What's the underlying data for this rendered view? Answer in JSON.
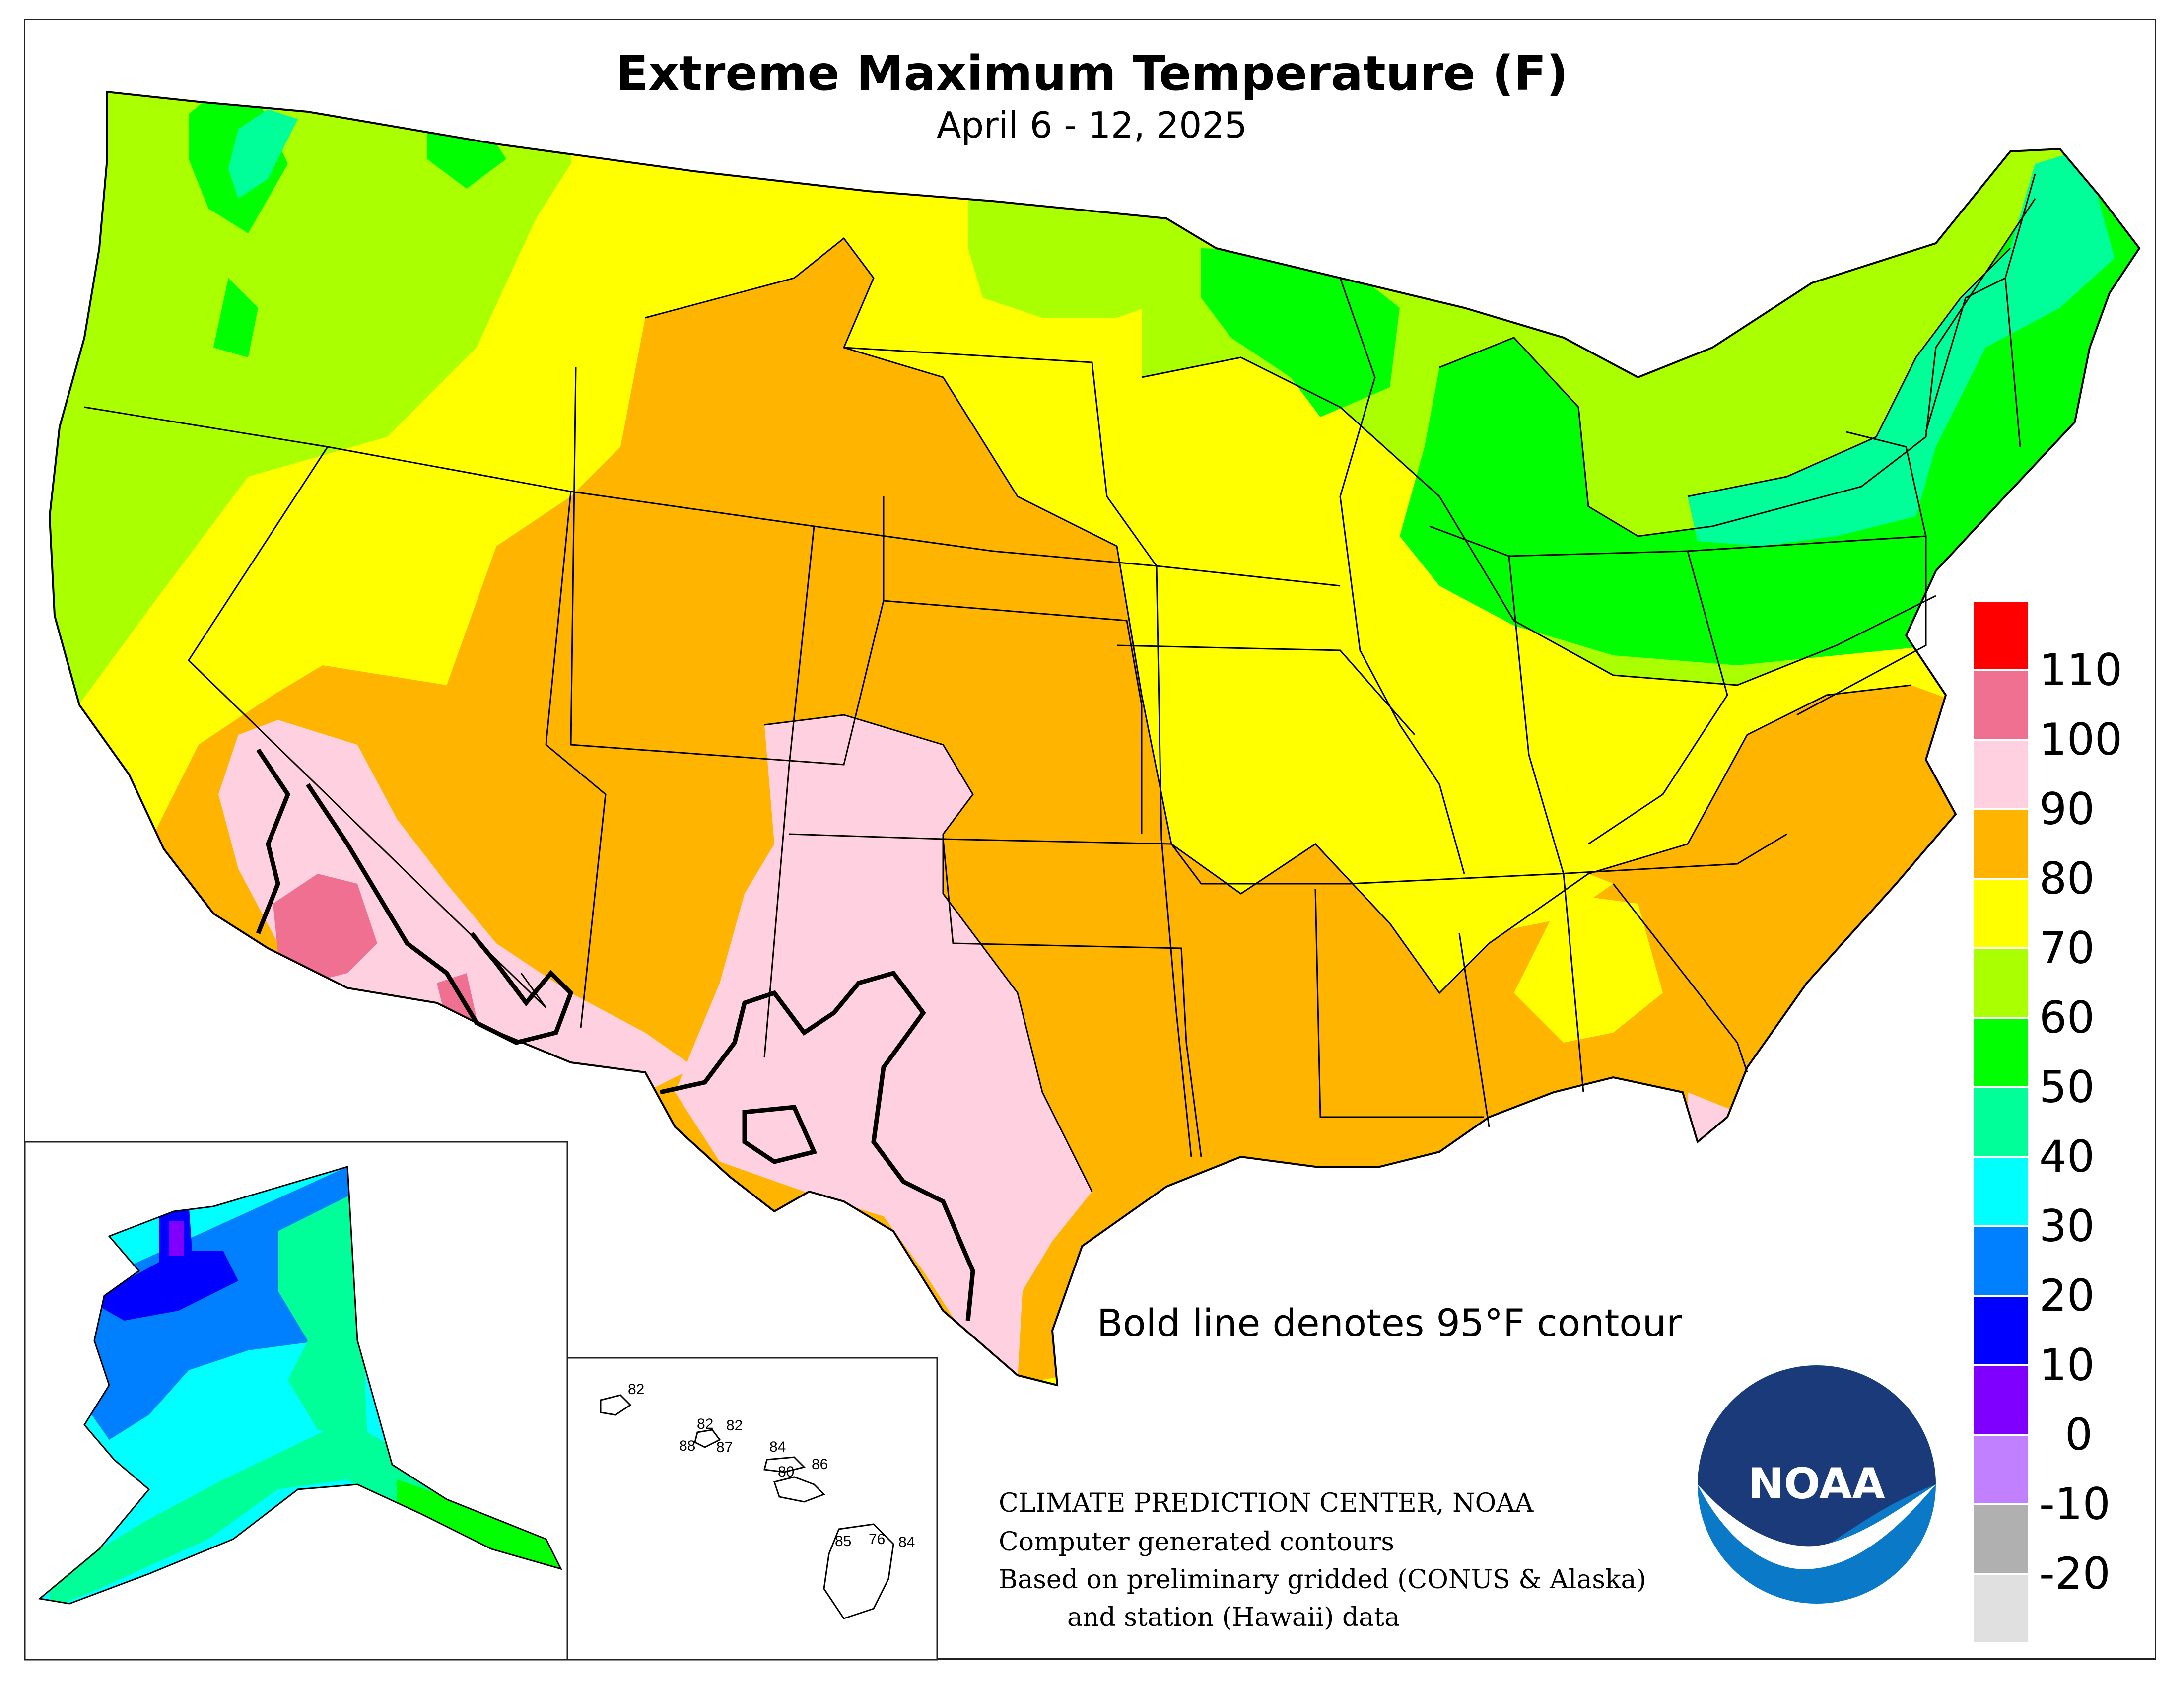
{
  "title": "Extreme Maximum Temperature (F)",
  "subtitle": "April 6 - 12, 2025",
  "contour_note": "Bold line denotes 95°F contour",
  "credits": [
    "CLIMATE PREDICTION CENTER, NOAA",
    "Computer generated contours",
    "Based on preliminary gridded (CONUS & Alaska)",
    "and station (Hawaii) data"
  ],
  "logo_text": "NOAA",
  "legend": {
    "labels": [
      "110",
      "100",
      "90",
      "80",
      "70",
      "60",
      "50",
      "40",
      "30",
      "20",
      "10",
      "0",
      "-10",
      "-20"
    ],
    "bins": [
      {
        "range": ">110",
        "color": "#ff0000"
      },
      {
        "range": "100-110",
        "color": "#ef7090"
      },
      {
        "range": "90-100",
        "color": "#ffd0e0"
      },
      {
        "range": "80-90",
        "color": "#ffb400"
      },
      {
        "range": "70-80",
        "color": "#ffff00"
      },
      {
        "range": "60-70",
        "color": "#aaff00"
      },
      {
        "range": "50-60",
        "color": "#00ff00"
      },
      {
        "range": "40-50",
        "color": "#00ff99"
      },
      {
        "range": "30-40",
        "color": "#00ffff"
      },
      {
        "range": "20-30",
        "color": "#0080ff"
      },
      {
        "range": "10-20",
        "color": "#0000ff"
      },
      {
        "range": "0-10",
        "color": "#8000ff"
      },
      {
        "range": "-10-0",
        "color": "#c080ff"
      },
      {
        "range": "-20--10",
        "color": "#b0b0b0"
      },
      {
        "range": "<-20",
        "color": "#e0e0e0"
      }
    ]
  },
  "hawaii_values": [
    "82",
    "82",
    "82",
    "88",
    "87",
    "84",
    "80",
    "86",
    "85",
    "76",
    "84"
  ]
}
